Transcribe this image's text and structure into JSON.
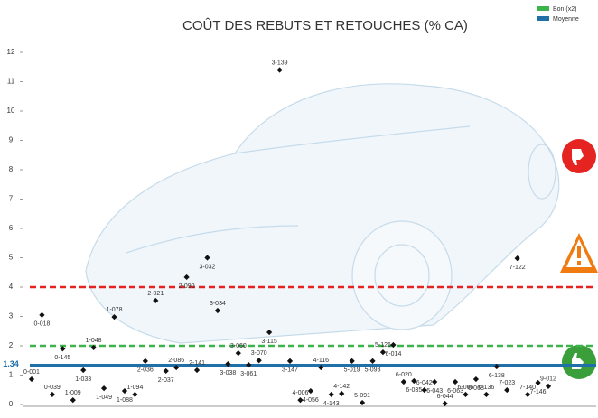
{
  "chart_data": {
    "type": "scatter",
    "title": "COÛT DES REBUTS ET RETOUCHES (% CA)",
    "categories": [
      "0-001",
      "0-018",
      "0-039",
      "0-145",
      "1-009",
      "1-033",
      "1-048",
      "1-049",
      "1-078",
      "1-088",
      "1-094",
      "2-036",
      "2-021",
      "2-037",
      "2-086",
      "2-090",
      "2-141",
      "3-032",
      "3-034",
      "3-038",
      "3-060",
      "3-061",
      "3-070",
      "3-115",
      "3-139",
      "3-147",
      "4-006",
      "4-056",
      "4-116",
      "4-143",
      "4-142",
      "5-019",
      "5-091",
      "5-093",
      "5-126",
      "6-014",
      "6-020",
      "6-035",
      "6-042",
      "6-043",
      "6-044",
      "6-063",
      "6-066",
      "6-068",
      "6-136",
      "6-138",
      "7-023",
      "7-122",
      "7-140",
      "7-146",
      "9-012"
    ],
    "values": [
      0.86,
      3.05,
      0.34,
      1.9,
      0.15,
      1.17,
      1.94,
      0.55,
      2.98,
      0.46,
      0.34,
      1.48,
      3.54,
      1.14,
      1.26,
      4.34,
      1.17,
      5.0,
      3.2,
      1.38,
      1.75,
      1.35,
      1.5,
      2.46,
      11.4,
      1.48,
      0.15,
      0.46,
      1.26,
      0.34,
      0.37,
      1.48,
      0.06,
      1.48,
      1.78,
      2.03,
      0.77,
      0.8,
      0.49,
      0.77,
      0.03,
      0.77,
      0.34,
      0.86,
      0.34,
      1.29,
      0.49,
      4.98,
      0.34,
      0.74,
      0.62
    ],
    "color": "#111111",
    "ylim": [
      0,
      12
    ],
    "yticks": [
      0,
      1,
      2,
      3,
      4,
      5,
      6,
      7,
      8,
      9,
      10,
      11,
      12
    ],
    "reference_lines": [
      {
        "value": 4,
        "color": "#e52421",
        "dashed": true
      },
      {
        "name": "Bon (x2)",
        "value": 2,
        "color": "#3cb44b",
        "dashed": true
      },
      {
        "name": "Moyenne",
        "value": 1.34,
        "color": "#1f6fa8",
        "dashed": false
      }
    ]
  }
}
